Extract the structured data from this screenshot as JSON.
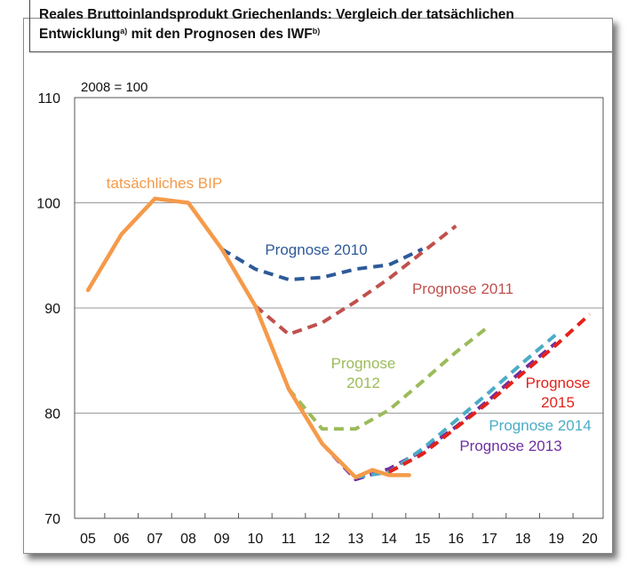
{
  "chart_data": {
    "type": "line",
    "title_line1": "Reales Bruttoinlandsprodukt Griechenlands: Vergleich der tatsächlichen",
    "title_line2": "Entwicklung",
    "title_sup_a": "a)",
    "title_line2b": " mit den Prognosen des IWF",
    "title_sup_b": "b)",
    "index_note": "2008 = 100",
    "ylim": [
      70,
      110
    ],
    "yticks": [
      70,
      80,
      90,
      100,
      110
    ],
    "xlim": [
      2004.6,
      2020.4
    ],
    "xticks": [
      2005,
      2006,
      2007,
      2008,
      2009,
      2010,
      2011,
      2012,
      2013,
      2014,
      2015,
      2016,
      2017,
      2018,
      2019,
      2020
    ],
    "xtick_labels": [
      "05",
      "06",
      "07",
      "08",
      "09",
      "10",
      "11",
      "12",
      "13",
      "14",
      "15",
      "16",
      "17",
      "18",
      "19",
      "20"
    ],
    "grid": "horizontal",
    "series": [
      {
        "name": "tatsächliches BIP",
        "color": "#f59a4a",
        "style": "solid",
        "x": [
          2005,
          2006,
          2007,
          2008,
          2009,
          2010,
          2011,
          2012,
          2013,
          2013.5,
          2014,
          2014.6
        ],
        "y": [
          91.7,
          97.0,
          100.4,
          100.0,
          95.6,
          90.2,
          82.3,
          77.1,
          73.9,
          74.6,
          74.1,
          74.1
        ]
      },
      {
        "name": "Prognose 2010",
        "color": "#2e5a99",
        "style": "dashed",
        "x": [
          2009,
          2010,
          2011,
          2012,
          2013,
          2014,
          2015
        ],
        "y": [
          95.6,
          93.7,
          92.7,
          92.9,
          93.7,
          94.1,
          95.6
        ]
      },
      {
        "name": "Prognose 2011",
        "color": "#c0504d",
        "style": "dashed",
        "x": [
          2010,
          2011,
          2012,
          2013,
          2014,
          2015,
          2016
        ],
        "y": [
          90.2,
          87.5,
          88.6,
          90.6,
          92.8,
          95.3,
          97.8
        ]
      },
      {
        "name": "Prognose 2012",
        "color": "#9bbb59",
        "style": "dashed",
        "x": [
          2011,
          2012,
          2013,
          2014,
          2015,
          2016,
          2017
        ],
        "y": [
          82.3,
          78.5,
          78.5,
          80.3,
          83.0,
          85.8,
          88.3
        ]
      },
      {
        "name": "Prognose 2013",
        "color": "#7030a0",
        "style": "dashed",
        "x": [
          2012,
          2013,
          2014,
          2015,
          2016,
          2017,
          2018,
          2019
        ],
        "y": [
          77.1,
          73.7,
          74.7,
          76.4,
          78.7,
          81.3,
          84.1,
          86.7
        ]
      },
      {
        "name": "Prognose 2014",
        "color": "#4bacc6",
        "style": "dashed",
        "x": [
          2013,
          2014,
          2015,
          2016,
          2017,
          2018,
          2019
        ],
        "y": [
          73.9,
          74.4,
          76.6,
          79.3,
          82.0,
          84.8,
          87.5
        ]
      },
      {
        "name": "Prognose 2015",
        "color": "#e3221b",
        "style": "dashed",
        "x": [
          2014,
          2015,
          2016,
          2017,
          2018,
          2019,
          2020
        ],
        "y": [
          74.4,
          76.1,
          78.6,
          81.1,
          83.8,
          86.5,
          89.4
        ]
      }
    ],
    "annotations": [
      {
        "series": "tatsächliches BIP",
        "lines": [
          "tatsächliches BIP"
        ]
      },
      {
        "series": "Prognose 2010",
        "lines": [
          "Prognose 2010"
        ]
      },
      {
        "series": "Prognose 2011",
        "lines": [
          "Prognose 2011"
        ]
      },
      {
        "series": "Prognose 2012",
        "lines": [
          "Prognose",
          "2012"
        ]
      },
      {
        "series": "Prognose 2015",
        "lines": [
          "Prognose",
          "2015"
        ]
      },
      {
        "series": "Prognose 2014",
        "lines": [
          "Prognose 2014"
        ]
      },
      {
        "series": "Prognose 2013",
        "lines": [
          "Prognose 2013"
        ]
      }
    ]
  }
}
